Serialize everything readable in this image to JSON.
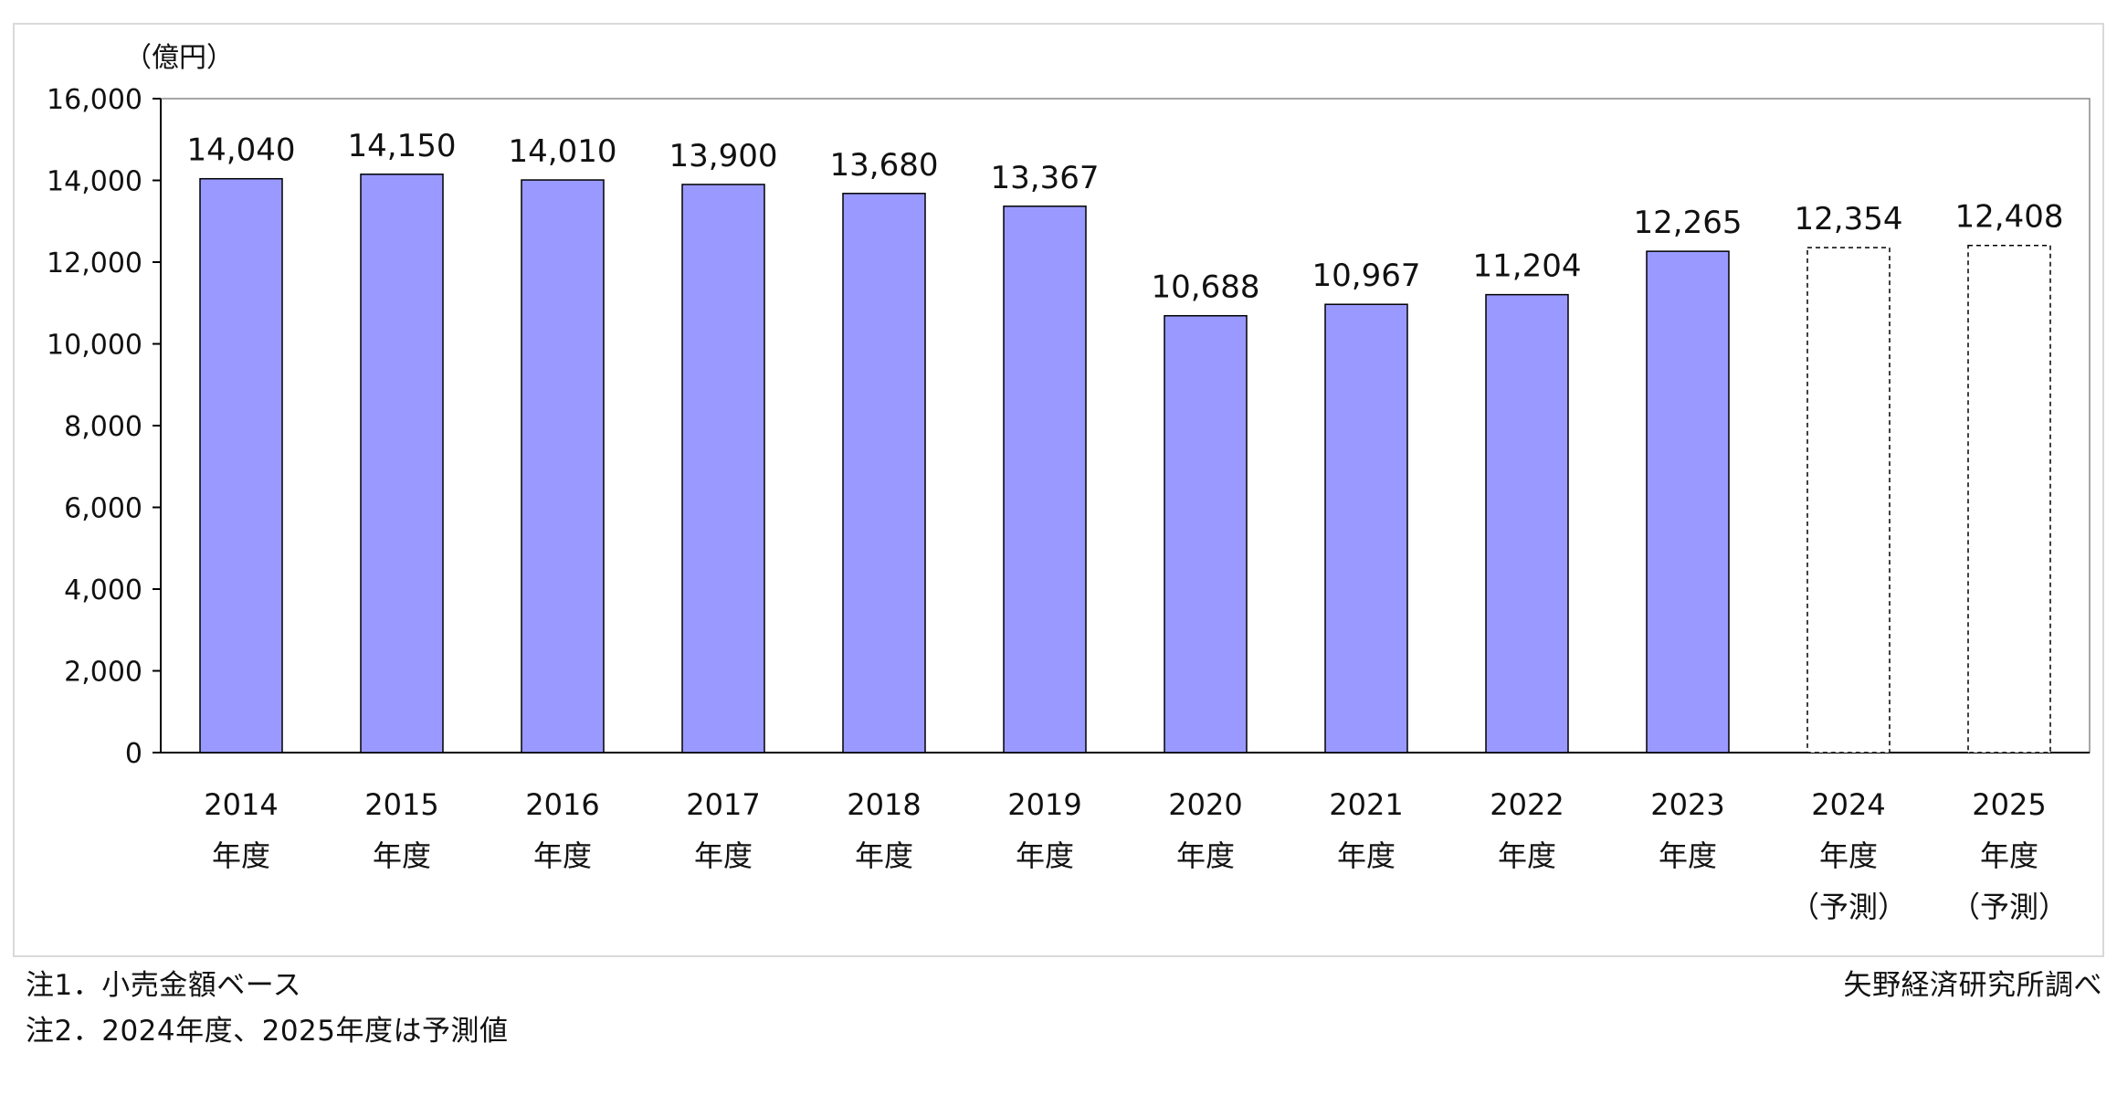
{
  "chart_data": {
    "type": "bar",
    "unit_label": "（億円）",
    "categories": [
      [
        "2014",
        "年度"
      ],
      [
        "2015",
        "年度"
      ],
      [
        "2016",
        "年度"
      ],
      [
        "2017",
        "年度"
      ],
      [
        "2018",
        "年度"
      ],
      [
        "2019",
        "年度"
      ],
      [
        "2020",
        "年度"
      ],
      [
        "2021",
        "年度"
      ],
      [
        "2022",
        "年度"
      ],
      [
        "2023",
        "年度"
      ],
      [
        "2024",
        "年度",
        "（予測）"
      ],
      [
        "2025",
        "年度",
        "（予測）"
      ]
    ],
    "values": [
      14040,
      14150,
      14010,
      13900,
      13680,
      13367,
      10688,
      10967,
      11204,
      12265,
      12354,
      12408
    ],
    "value_labels": [
      "14,040",
      "14,150",
      "14,010",
      "13,900",
      "13,680",
      "13,367",
      "10,688",
      "10,967",
      "11,204",
      "12,265",
      "12,354",
      "12,408"
    ],
    "forecast": [
      false,
      false,
      false,
      false,
      false,
      false,
      false,
      false,
      false,
      false,
      true,
      true
    ],
    "ylim": [
      0,
      16000
    ],
    "yticks": [
      0,
      2000,
      4000,
      6000,
      8000,
      10000,
      12000,
      14000,
      16000
    ],
    "ytick_labels": [
      "0",
      "2,000",
      "4,000",
      "6,000",
      "8,000",
      "10,000",
      "12,000",
      "14,000",
      "16,000"
    ],
    "grid": false,
    "colors": {
      "actual_fill": "#9999ff",
      "forecast_fill": "#ffffff",
      "bar_stroke": "#000000"
    }
  },
  "notes": {
    "note1": "注1．小売金額ベース",
    "note2": "注2．2024年度、2025年度は予測値",
    "source": "矢野経済研究所調べ"
  }
}
